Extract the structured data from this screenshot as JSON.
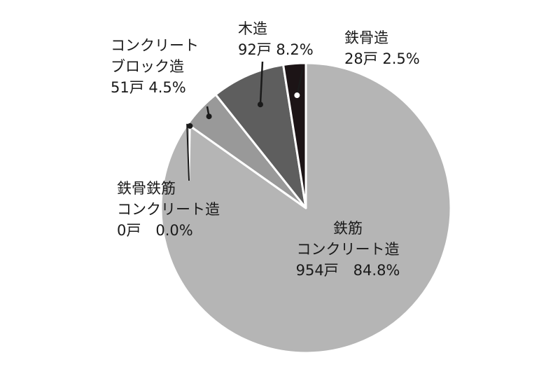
{
  "chart_data": {
    "type": "pie",
    "unit": "戸",
    "slices": [
      {
        "name": "鉄筋コンクリート造",
        "name_lines": [
          "鉄筋",
          "コンクリート造"
        ],
        "count": 954,
        "percent": 84.8,
        "value_text": "954戸　84.8%",
        "color": "#b5b5b5"
      },
      {
        "name": "鉄骨鉄筋コンクリート造",
        "name_lines": [
          "鉄骨鉄筋",
          "コンクリート造"
        ],
        "count": 0,
        "percent": 0.0,
        "value_text": "0戸　0.0%",
        "color": "#b5b5b5"
      },
      {
        "name": "コンクリートブロック造",
        "name_lines": [
          "コンクリート",
          "ブロック造"
        ],
        "count": 51,
        "percent": 4.5,
        "value_text": "51戸 4.5%",
        "color": "#999999"
      },
      {
        "name": "木造",
        "name_lines": [
          "木造"
        ],
        "count": 92,
        "percent": 8.2,
        "value_text": "92戸 8.2%",
        "color": "#5e5e5e"
      },
      {
        "name": "鉄骨造",
        "name_lines": [
          "鉄骨造"
        ],
        "count": 28,
        "percent": 2.5,
        "value_text": "28戸 2.5%",
        "color": "#1c1416"
      }
    ]
  }
}
